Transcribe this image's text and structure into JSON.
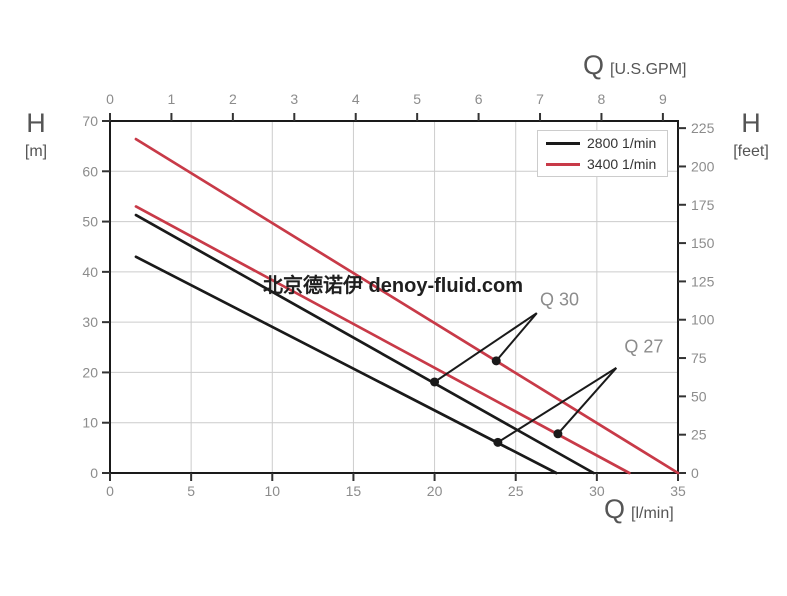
{
  "watermark": {
    "text": "北京德诺伊 denoy-fluid.com"
  },
  "axis_titles": {
    "top": {
      "symbol": "Q",
      "unit": "[U.S.GPM]"
    },
    "bottom": {
      "symbol": "Q",
      "unit": "[l/min]"
    },
    "left": {
      "symbol": "H",
      "unit": "[m]"
    },
    "right": {
      "symbol": "H",
      "unit": "[feet]"
    }
  },
  "legend": {
    "items": [
      {
        "label": "2800 1/min",
        "color": "#1a1a1a"
      },
      {
        "label": "3400 1/min",
        "color": "#c83a48"
      }
    ]
  },
  "chart_data": {
    "type": "line",
    "title": "",
    "xlabel": "Q [l/min]",
    "ylabel": "H [m]",
    "x2label": "Q [U.S.GPM]",
    "y2label": "H [feet]",
    "xlim": [
      0,
      35
    ],
    "ylim": [
      0,
      70
    ],
    "x_ticks_lmin": [
      0,
      5,
      10,
      15,
      20,
      25,
      30,
      35
    ],
    "y_ticks_m": [
      0,
      10,
      20,
      30,
      40,
      50,
      60,
      70
    ],
    "x2_ticks_gpm": [
      0,
      1,
      2,
      3,
      4,
      5,
      6,
      7,
      8,
      9
    ],
    "y2_ticks_feet": [
      0,
      25,
      50,
      75,
      100,
      125,
      150,
      175,
      200,
      225
    ],
    "unit_conversion": {
      "lmin_per_usgpm": 3.7854,
      "feet_per_m": 3.2808
    },
    "grid": {
      "show": true,
      "x_step_lmin": 5,
      "y_step_m": 10
    },
    "legend_position": "top-right",
    "series": [
      {
        "name": "2800 1/min (Q 30)",
        "rpm": "2800 1/min",
        "model": "Q 30",
        "color": "#1a1a1a",
        "points": [
          [
            1.6,
            51.3
          ],
          [
            29.8,
            0
          ]
        ]
      },
      {
        "name": "2800 1/min (Q 27)",
        "rpm": "2800 1/min",
        "model": "Q 27",
        "color": "#1a1a1a",
        "points": [
          [
            1.6,
            43.0
          ],
          [
            27.5,
            0
          ]
        ]
      },
      {
        "name": "3400 1/min (Q 30)",
        "rpm": "3400 1/min",
        "model": "Q 30",
        "color": "#c83a48",
        "points": [
          [
            1.6,
            66.4
          ],
          [
            35.0,
            0
          ]
        ]
      },
      {
        "name": "3400 1/min (Q 27)",
        "rpm": "3400 1/min",
        "model": "Q 27",
        "color": "#c83a48",
        "points": [
          [
            1.6,
            53.0
          ],
          [
            32.0,
            0
          ]
        ]
      }
    ],
    "annotations": [
      {
        "label": "Q 30",
        "label_at": [
          27.7,
          34.4
        ],
        "vertex_at": [
          26.3,
          31.8
        ],
        "marked_points": [
          [
            20.0,
            18.1
          ],
          [
            23.8,
            22.3
          ]
        ]
      },
      {
        "label": "Q 27",
        "label_at": [
          32.9,
          25.0
        ],
        "vertex_at": [
          31.2,
          20.9
        ],
        "marked_points": [
          [
            23.9,
            6.1
          ],
          [
            27.6,
            7.8
          ]
        ]
      }
    ],
    "marker_color": "#1a1a1a",
    "colors": {
      "frame": "#1a1a1a",
      "grid": "#cccccc",
      "tick": "#333333",
      "tick_label": "#8c8c8c",
      "axis_title": "#555555",
      "annotation_label": "#8c8c8c",
      "black_curve": "#1a1a1a",
      "red_curve": "#c83a48"
    }
  }
}
